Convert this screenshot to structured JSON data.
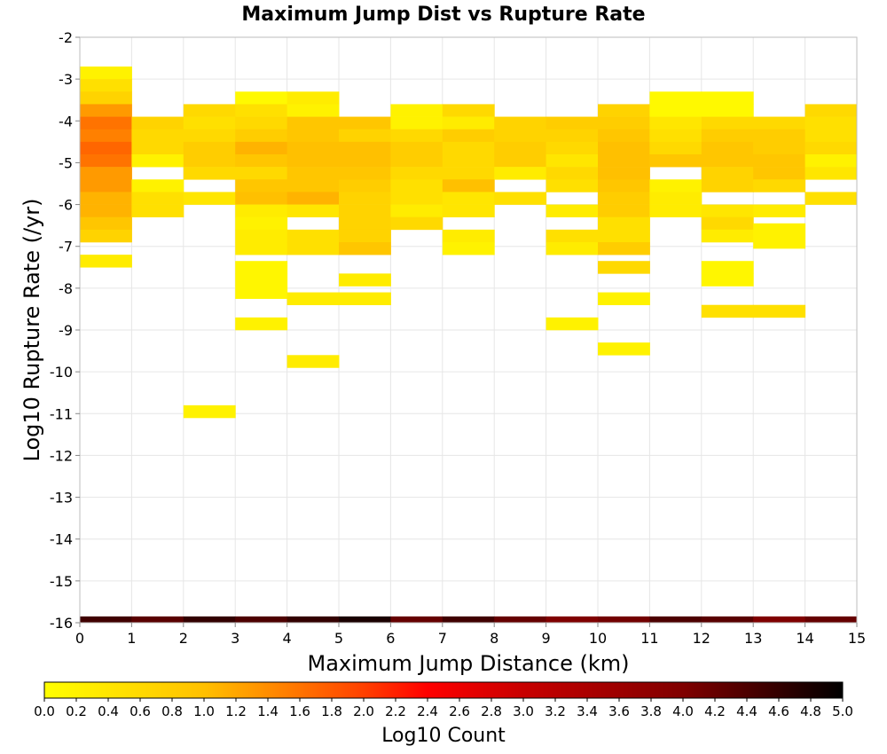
{
  "chart_data": {
    "type": "heatmap",
    "title": "Maximum Jump Dist vs Rupture Rate",
    "xlabel": "Maximum Jump Distance (km)",
    "ylabel": "Log10 Rupture Rate (/yr)",
    "colorbar_label": "Log10 Count",
    "xlim": [
      0,
      15
    ],
    "ylim": [
      -16,
      -2
    ],
    "x_ticks": [
      "0",
      "1",
      "2",
      "3",
      "4",
      "5",
      "6",
      "7",
      "8",
      "9",
      "10",
      "11",
      "12",
      "13",
      "14",
      "15"
    ],
    "y_ticks": [
      "-2",
      "-3",
      "-4",
      "-5",
      "-6",
      "-7",
      "-8",
      "-9",
      "-10",
      "-11",
      "-12",
      "-13",
      "-14",
      "-15",
      "-16"
    ],
    "color_range": [
      0,
      5
    ],
    "colorbar_ticks": [
      "0.0",
      "0.2",
      "0.4",
      "0.6",
      "0.8",
      "1.0",
      "1.2",
      "1.4",
      "1.6",
      "1.8",
      "2.0",
      "2.2",
      "2.4",
      "2.6",
      "2.8",
      "3.0",
      "3.2",
      "3.4",
      "3.6",
      "3.8",
      "4.0",
      "4.2",
      "4.4",
      "4.6",
      "4.8",
      "5.0"
    ],
    "grid": true,
    "bin_width_x": 1,
    "bin_height_y": 0.3,
    "cells": [
      [
        0,
        -2.85,
        0.2
      ],
      [
        0,
        -3.15,
        0.5
      ],
      [
        0,
        -3.45,
        0.7
      ],
      [
        0,
        -3.75,
        1.3
      ],
      [
        0,
        -4.05,
        1.6
      ],
      [
        0,
        -4.35,
        1.5
      ],
      [
        0,
        -4.65,
        1.7
      ],
      [
        0,
        -4.95,
        1.6
      ],
      [
        0,
        -5.25,
        1.3
      ],
      [
        0,
        -5.55,
        1.3
      ],
      [
        0,
        -5.85,
        1.1
      ],
      [
        0,
        -6.15,
        1.1
      ],
      [
        0,
        -6.45,
        0.9
      ],
      [
        0,
        -6.75,
        0.7
      ],
      [
        0,
        -7.35,
        0.3
      ],
      [
        0,
        -16,
        4.5
      ],
      [
        1,
        -4.05,
        0.7
      ],
      [
        1,
        -4.35,
        0.6
      ],
      [
        1,
        -4.65,
        0.6
      ],
      [
        1,
        -4.95,
        0.2
      ],
      [
        1,
        -5.55,
        0.2
      ],
      [
        1,
        -5.85,
        0.5
      ],
      [
        1,
        -6.15,
        0.5
      ],
      [
        1,
        -16,
        4.3
      ],
      [
        2,
        -3.75,
        0.6
      ],
      [
        2,
        -4.05,
        0.5
      ],
      [
        2,
        -4.35,
        0.6
      ],
      [
        2,
        -4.65,
        0.8
      ],
      [
        2,
        -4.95,
        0.8
      ],
      [
        2,
        -5.25,
        0.6
      ],
      [
        2,
        -5.85,
        0.4
      ],
      [
        2,
        -10.95,
        0.2
      ],
      [
        2,
        -16,
        4.6
      ],
      [
        3,
        -3.45,
        0.1
      ],
      [
        3,
        -3.75,
        0.5
      ],
      [
        3,
        -4.05,
        0.6
      ],
      [
        3,
        -4.35,
        0.8
      ],
      [
        3,
        -4.65,
        1.1
      ],
      [
        3,
        -4.95,
        0.9
      ],
      [
        3,
        -5.25,
        0.6
      ],
      [
        3,
        -5.55,
        0.9
      ],
      [
        3,
        -5.85,
        1.0
      ],
      [
        3,
        -6.15,
        0.3
      ],
      [
        3,
        -6.45,
        0.2
      ],
      [
        3,
        -6.75,
        0.3
      ],
      [
        3,
        -7.05,
        0.3
      ],
      [
        3,
        -7.5,
        0.15
      ],
      [
        3,
        -7.8,
        0.15
      ],
      [
        3,
        -8.1,
        0.15
      ],
      [
        3,
        -8.85,
        0.2
      ],
      [
        3,
        -16,
        4.4
      ],
      [
        4,
        -3.45,
        0.3
      ],
      [
        4,
        -3.75,
        0.2
      ],
      [
        4,
        -4.05,
        0.9
      ],
      [
        4,
        -4.35,
        0.9
      ],
      [
        4,
        -4.65,
        1.0
      ],
      [
        4,
        -4.95,
        1.0
      ],
      [
        4,
        -5.25,
        0.9
      ],
      [
        4,
        -5.55,
        0.9
      ],
      [
        4,
        -5.85,
        1.1
      ],
      [
        4,
        -6.15,
        0.4
      ],
      [
        4,
        -6.75,
        0.5
      ],
      [
        4,
        -7.05,
        0.5
      ],
      [
        4,
        -8.25,
        0.3
      ],
      [
        4,
        -9.75,
        0.3
      ],
      [
        4,
        -16,
        4.6
      ],
      [
        5,
        -4.05,
        0.9
      ],
      [
        5,
        -4.35,
        0.7
      ],
      [
        5,
        -4.65,
        1.0
      ],
      [
        5,
        -4.95,
        1.0
      ],
      [
        5,
        -5.25,
        0.9
      ],
      [
        5,
        -5.55,
        0.8
      ],
      [
        5,
        -5.85,
        0.7
      ],
      [
        5,
        -6.15,
        0.7
      ],
      [
        5,
        -6.45,
        0.7
      ],
      [
        5,
        -6.75,
        0.7
      ],
      [
        5,
        -7.05,
        0.9
      ],
      [
        5,
        -7.8,
        0.3
      ],
      [
        5,
        -8.25,
        0.3
      ],
      [
        5,
        -16,
        4.8
      ],
      [
        6,
        -3.75,
        0.2
      ],
      [
        6,
        -4.05,
        0.2
      ],
      [
        6,
        -4.35,
        0.6
      ],
      [
        6,
        -4.65,
        0.8
      ],
      [
        6,
        -4.95,
        0.8
      ],
      [
        6,
        -5.25,
        0.6
      ],
      [
        6,
        -5.55,
        0.5
      ],
      [
        6,
        -5.85,
        0.5
      ],
      [
        6,
        -6.15,
        0.3
      ],
      [
        6,
        -6.45,
        0.6
      ],
      [
        6,
        -16,
        4.2
      ],
      [
        7,
        -3.75,
        0.6
      ],
      [
        7,
        -4.05,
        0.3
      ],
      [
        7,
        -4.35,
        0.8
      ],
      [
        7,
        -4.65,
        0.6
      ],
      [
        7,
        -4.95,
        0.6
      ],
      [
        7,
        -5.25,
        0.6
      ],
      [
        7,
        -5.55,
        1.0
      ],
      [
        7,
        -5.85,
        0.4
      ],
      [
        7,
        -6.15,
        0.4
      ],
      [
        7,
        -6.75,
        0.3
      ],
      [
        7,
        -7.05,
        0.2
      ],
      [
        7,
        -16,
        4.5
      ],
      [
        8,
        -4.05,
        0.7
      ],
      [
        8,
        -4.35,
        0.7
      ],
      [
        8,
        -4.65,
        0.8
      ],
      [
        8,
        -4.95,
        0.8
      ],
      [
        8,
        -5.25,
        0.3
      ],
      [
        8,
        -5.85,
        0.5
      ],
      [
        8,
        -16,
        4.2
      ],
      [
        9,
        -4.05,
        0.8
      ],
      [
        9,
        -4.35,
        0.7
      ],
      [
        9,
        -4.65,
        0.6
      ],
      [
        9,
        -4.95,
        0.4
      ],
      [
        9,
        -5.25,
        0.6
      ],
      [
        9,
        -5.55,
        0.5
      ],
      [
        9,
        -6.15,
        0.3
      ],
      [
        9,
        -6.75,
        0.5
      ],
      [
        9,
        -7.05,
        0.3
      ],
      [
        9,
        -8.85,
        0.2
      ],
      [
        9,
        -16,
        4.0
      ],
      [
        10,
        -3.75,
        0.7
      ],
      [
        10,
        -4.05,
        0.8
      ],
      [
        10,
        -4.35,
        0.9
      ],
      [
        10,
        -4.65,
        1.0
      ],
      [
        10,
        -4.95,
        1.0
      ],
      [
        10,
        -5.25,
        1.0
      ],
      [
        10,
        -5.55,
        0.9
      ],
      [
        10,
        -5.85,
        0.8
      ],
      [
        10,
        -6.15,
        0.8
      ],
      [
        10,
        -6.45,
        0.5
      ],
      [
        10,
        -6.75,
        0.5
      ],
      [
        10,
        -7.05,
        0.8
      ],
      [
        10,
        -7.5,
        0.6
      ],
      [
        10,
        -8.25,
        0.2
      ],
      [
        10,
        -9.45,
        0.2
      ],
      [
        10,
        -16,
        4.1
      ],
      [
        11,
        -3.45,
        0.1
      ],
      [
        11,
        -3.75,
        0.1
      ],
      [
        11,
        -4.05,
        0.4
      ],
      [
        11,
        -4.35,
        0.5
      ],
      [
        11,
        -4.65,
        0.6
      ],
      [
        11,
        -4.95,
        0.9
      ],
      [
        11,
        -5.55,
        0.2
      ],
      [
        11,
        -5.85,
        0.3
      ],
      [
        11,
        -6.15,
        0.3
      ],
      [
        11,
        -16,
        4.4
      ],
      [
        12,
        -3.45,
        0.1
      ],
      [
        12,
        -3.75,
        0.1
      ],
      [
        12,
        -4.05,
        0.6
      ],
      [
        12,
        -4.35,
        0.8
      ],
      [
        12,
        -4.65,
        0.9
      ],
      [
        12,
        -4.95,
        0.9
      ],
      [
        12,
        -5.25,
        0.7
      ],
      [
        12,
        -5.55,
        0.7
      ],
      [
        12,
        -6.15,
        0.4
      ],
      [
        12,
        -6.45,
        0.6
      ],
      [
        12,
        -6.75,
        0.3
      ],
      [
        12,
        -7.5,
        0.15
      ],
      [
        12,
        -7.8,
        0.15
      ],
      [
        12,
        -8.55,
        0.5
      ],
      [
        12,
        -16,
        4.3
      ],
      [
        13,
        -4.05,
        0.6
      ],
      [
        13,
        -4.35,
        0.8
      ],
      [
        13,
        -4.65,
        0.8
      ],
      [
        13,
        -4.95,
        0.9
      ],
      [
        13,
        -5.25,
        0.9
      ],
      [
        13,
        -5.55,
        0.6
      ],
      [
        13,
        -6.15,
        0.3
      ],
      [
        13,
        -6.6,
        0.2
      ],
      [
        13,
        -6.9,
        0.2
      ],
      [
        13,
        -8.55,
        0.5
      ],
      [
        13,
        -16,
        4.0
      ],
      [
        14,
        -3.75,
        0.6
      ],
      [
        14,
        -4.05,
        0.5
      ],
      [
        14,
        -4.35,
        0.5
      ],
      [
        14,
        -4.65,
        0.6
      ],
      [
        14,
        -4.95,
        0.2
      ],
      [
        14,
        -5.25,
        0.4
      ],
      [
        14,
        -5.85,
        0.5
      ],
      [
        14,
        -16,
        4.2
      ]
    ]
  }
}
